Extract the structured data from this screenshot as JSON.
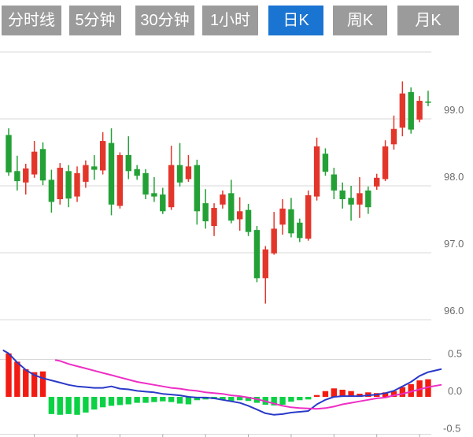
{
  "toolbar": {
    "tabs": [
      {
        "label": "分时线",
        "active": false
      },
      {
        "label": "5分钟",
        "active": false
      },
      {
        "label": "30分钟",
        "active": false
      },
      {
        "label": "1小时",
        "active": false
      },
      {
        "label": "日K",
        "active": true
      },
      {
        "label": "周K",
        "active": false
      },
      {
        "label": "月K",
        "active": false
      }
    ],
    "colors": {
      "tab_bg": "#9b9b9b",
      "tab_active_bg": "#1a74d2",
      "tab_text": "#ffffff"
    }
  },
  "price_axis": {
    "gridlines": [
      100.0,
      99.0,
      98.0,
      97.0,
      96.0
    ],
    "labels": [
      {
        "value": 99.0,
        "text": "99.0"
      },
      {
        "value": 98.0,
        "text": "98.0"
      },
      {
        "value": 97.0,
        "text": "97.0"
      },
      {
        "value": 96.0,
        "text": "96.0"
      }
    ]
  },
  "macd_axis": {
    "gridlines": [
      0.5,
      -0.5
    ],
    "labels": [
      {
        "value": 0.5,
        "text": "0.5"
      },
      {
        "value": 0.0,
        "text": "0.0"
      },
      {
        "value": -0.5,
        "text": "-0.5"
      }
    ]
  },
  "x_axis": {
    "tick_indices": [
      3,
      8,
      13,
      18,
      23,
      28,
      33,
      38,
      43,
      48
    ]
  },
  "chart_data": {
    "type": "candlestick+macd",
    "convention": "red = up (close>=open), green = down (Chinese style)",
    "ohlc_order": [
      "open",
      "high",
      "low",
      "close"
    ],
    "price_ylim": [
      95.6,
      100.15
    ],
    "macd_ylim": [
      -0.55,
      0.62
    ],
    "candles": [
      [
        98.76,
        98.86,
        98.15,
        98.2
      ],
      [
        98.22,
        98.45,
        97.93,
        98.07
      ],
      [
        98.05,
        98.33,
        97.87,
        98.26
      ],
      [
        98.17,
        98.67,
        98.12,
        98.51
      ],
      [
        98.55,
        98.65,
        98.01,
        98.08
      ],
      [
        98.09,
        98.24,
        97.6,
        97.76
      ],
      [
        97.8,
        98.34,
        97.72,
        98.27
      ],
      [
        98.22,
        98.31,
        97.68,
        97.81
      ],
      [
        97.84,
        98.29,
        97.76,
        98.19
      ],
      [
        98.06,
        98.38,
        97.97,
        98.31
      ],
      [
        98.29,
        98.46,
        98.09,
        98.24
      ],
      [
        98.23,
        98.8,
        98.17,
        98.67
      ],
      [
        98.64,
        98.86,
        97.56,
        97.72
      ],
      [
        97.7,
        98.5,
        97.66,
        98.46
      ],
      [
        98.46,
        98.74,
        98.1,
        98.22
      ],
      [
        98.25,
        98.31,
        98.09,
        98.15
      ],
      [
        98.19,
        98.25,
        97.8,
        97.87
      ],
      [
        97.89,
        98.13,
        97.76,
        97.84
      ],
      [
        97.87,
        97.97,
        97.58,
        97.62
      ],
      [
        97.68,
        98.6,
        97.64,
        98.31
      ],
      [
        98.31,
        98.64,
        97.99,
        98.05
      ],
      [
        98.1,
        98.46,
        98.06,
        98.29
      ],
      [
        98.31,
        98.39,
        97.42,
        97.62
      ],
      [
        97.74,
        97.95,
        97.36,
        97.47
      ],
      [
        97.4,
        97.74,
        97.25,
        97.67
      ],
      [
        97.72,
        97.93,
        97.66,
        97.87
      ],
      [
        97.89,
        98.09,
        97.44,
        97.48
      ],
      [
        97.5,
        97.83,
        97.33,
        97.62
      ],
      [
        97.64,
        97.73,
        97.25,
        97.31
      ],
      [
        97.34,
        97.4,
        96.56,
        96.62
      ],
      [
        96.62,
        97.1,
        96.24,
        97.05
      ],
      [
        96.99,
        97.61,
        96.97,
        97.36
      ],
      [
        97.42,
        97.8,
        97.27,
        97.66
      ],
      [
        97.65,
        97.82,
        97.23,
        97.29
      ],
      [
        97.45,
        97.51,
        97.16,
        97.22
      ],
      [
        97.21,
        97.93,
        97.18,
        97.86
      ],
      [
        97.84,
        98.72,
        97.78,
        98.59
      ],
      [
        98.48,
        98.56,
        98.15,
        98.21
      ],
      [
        98.17,
        98.27,
        97.8,
        97.93
      ],
      [
        97.93,
        98.05,
        97.66,
        97.8
      ],
      [
        97.82,
        98.0,
        97.48,
        97.72
      ],
      [
        97.72,
        98.13,
        97.52,
        97.89
      ],
      [
        97.93,
        97.99,
        97.58,
        97.68
      ],
      [
        97.99,
        98.18,
        97.94,
        98.12
      ],
      [
        98.1,
        98.68,
        98.07,
        98.59
      ],
      [
        98.62,
        99.05,
        98.54,
        98.85
      ],
      [
        98.87,
        99.56,
        98.74,
        99.38
      ],
      [
        99.4,
        99.47,
        98.78,
        98.84
      ],
      [
        98.99,
        99.34,
        98.95,
        99.27
      ],
      [
        99.26,
        99.42,
        99.19,
        99.24
      ]
    ],
    "macd": {
      "histogram": [
        0.58,
        0.47,
        0.37,
        0.33,
        0.34,
        -0.23,
        -0.24,
        -0.23,
        -0.24,
        -0.21,
        -0.17,
        -0.14,
        -0.12,
        -0.11,
        -0.1,
        -0.08,
        -0.08,
        -0.07,
        -0.06,
        -0.07,
        -0.09,
        -0.1,
        -0.045,
        -0.035,
        -0.03,
        -0.045,
        -0.055,
        -0.045,
        -0.055,
        -0.08,
        -0.105,
        -0.115,
        -0.105,
        -0.065,
        -0.045,
        -0.035,
        0.024,
        0.077,
        0.113,
        0.095,
        0.077,
        0.042,
        0.06,
        0.05,
        0.06,
        0.077,
        0.13,
        0.17,
        0.22,
        0.235
      ],
      "dif_points": [
        [
          -0.6,
          0.62
        ],
        [
          0,
          0.58
        ],
        [
          1,
          0.46
        ],
        [
          2,
          0.36
        ],
        [
          3,
          0.29
        ],
        [
          4,
          0.25
        ],
        [
          5,
          0.22
        ],
        [
          6,
          0.19
        ],
        [
          7,
          0.16
        ],
        [
          8,
          0.14
        ],
        [
          9,
          0.13
        ],
        [
          10,
          0.12
        ],
        [
          11,
          0.12
        ],
        [
          12,
          0.14
        ],
        [
          13,
          0.11
        ],
        [
          14,
          0.1
        ],
        [
          15,
          0.08
        ],
        [
          16,
          0.07
        ],
        [
          17,
          0.06
        ],
        [
          18,
          0.04
        ],
        [
          19,
          0.03
        ],
        [
          20,
          0.02
        ],
        [
          21,
          0.0
        ],
        [
          22,
          -0.01
        ],
        [
          23,
          -0.01
        ],
        [
          24,
          -0.02
        ],
        [
          25,
          -0.04
        ],
        [
          26,
          -0.06
        ],
        [
          27,
          -0.08
        ],
        [
          28,
          -0.12
        ],
        [
          29,
          -0.17
        ],
        [
          30,
          -0.22
        ],
        [
          31,
          -0.24
        ],
        [
          32,
          -0.23
        ],
        [
          33,
          -0.21
        ],
        [
          34,
          -0.2
        ],
        [
          35,
          -0.19
        ],
        [
          36,
          -0.1
        ],
        [
          37,
          -0.04
        ],
        [
          38,
          0.0
        ],
        [
          39,
          0.01
        ],
        [
          40,
          0.01
        ],
        [
          41,
          0.01
        ],
        [
          42,
          0.02
        ],
        [
          43,
          0.03
        ],
        [
          44,
          0.05
        ],
        [
          45,
          0.08
        ],
        [
          46,
          0.14
        ],
        [
          47,
          0.2
        ],
        [
          48,
          0.28
        ],
        [
          49,
          0.33
        ],
        [
          50.5,
          0.37
        ]
      ],
      "dea_points": [
        [
          5.5,
          0.49
        ],
        [
          6,
          0.48
        ],
        [
          7,
          0.44
        ],
        [
          8,
          0.41
        ],
        [
          9,
          0.38
        ],
        [
          10,
          0.35
        ],
        [
          11,
          0.32
        ],
        [
          12,
          0.29
        ],
        [
          13,
          0.26
        ],
        [
          14,
          0.23
        ],
        [
          15,
          0.2
        ],
        [
          16,
          0.18
        ],
        [
          17,
          0.16
        ],
        [
          18,
          0.14
        ],
        [
          19,
          0.12
        ],
        [
          20,
          0.11
        ],
        [
          21,
          0.09
        ],
        [
          22,
          0.08
        ],
        [
          23,
          0.06
        ],
        [
          24,
          0.05
        ],
        [
          25,
          0.04
        ],
        [
          26,
          0.02
        ],
        [
          27,
          0.01
        ],
        [
          28,
          -0.01
        ],
        [
          29,
          -0.03
        ],
        [
          30,
          -0.06
        ],
        [
          31,
          -0.09
        ],
        [
          32,
          -0.12
        ],
        [
          33,
          -0.14
        ],
        [
          34,
          -0.15
        ],
        [
          35,
          -0.155
        ],
        [
          36,
          -0.16
        ],
        [
          37,
          -0.15
        ],
        [
          38,
          -0.13
        ],
        [
          39,
          -0.1
        ],
        [
          40,
          -0.08
        ],
        [
          41,
          -0.06
        ],
        [
          42,
          -0.04
        ],
        [
          43,
          -0.02
        ],
        [
          44,
          -0.01
        ],
        [
          45,
          0.02
        ],
        [
          46,
          0.04
        ],
        [
          47,
          0.07
        ],
        [
          48,
          0.1
        ],
        [
          49,
          0.13
        ],
        [
          50.5,
          0.16
        ]
      ]
    },
    "colors": {
      "up": "#e3362b",
      "down": "#24a136",
      "hist_up": "#f21b12",
      "hist_down": "#0bd145",
      "dif_line": "#2a39c8",
      "dea_line": "#ee2ec5",
      "grid": "#d9d9d9",
      "axis_text": "#6b6b6b"
    }
  }
}
